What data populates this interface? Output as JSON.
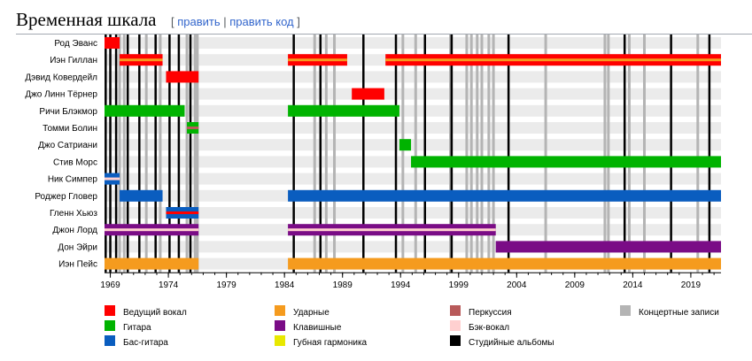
{
  "header": {
    "title": "Временная шкала",
    "bracket_open": "[",
    "edit": "править",
    "sep": "|",
    "edit_code": "править код",
    "bracket_close": "]"
  },
  "chart_data": {
    "type": "timeline",
    "title": "Временная шкала",
    "x_range": [
      1968.5,
      2021.6
    ],
    "x_ticks": [
      1969,
      1974,
      1979,
      1984,
      1989,
      1994,
      1999,
      2004,
      2009,
      2014,
      2019
    ],
    "members": [
      {
        "name": "Род Эванс",
        "bars": [
          {
            "role": "vocals",
            "start": 1968.5,
            "end": 1969.8
          }
        ]
      },
      {
        "name": "Иэн Гиллан",
        "bars": [
          {
            "role": "vocals",
            "start": 1969.8,
            "end": 1973.5,
            "stripe": "drums"
          },
          {
            "role": "vocals",
            "start": 1984.3,
            "end": 1989.4,
            "stripe": "drums"
          },
          {
            "role": "vocals",
            "start": 1992.7,
            "end": 2021.6,
            "stripe": "drums"
          }
        ]
      },
      {
        "name": "Дэвид Ковердейл",
        "bars": [
          {
            "role": "vocals",
            "start": 1973.8,
            "end": 1976.6
          }
        ]
      },
      {
        "name": "Джо Линн Тёрнер",
        "bars": [
          {
            "role": "vocals",
            "start": 1989.8,
            "end": 1992.6
          }
        ]
      },
      {
        "name": "Ричи Блэкмор",
        "bars": [
          {
            "role": "guitar",
            "start": 1968.5,
            "end": 1975.4
          },
          {
            "role": "guitar",
            "start": 1984.3,
            "end": 1993.9
          }
        ]
      },
      {
        "name": "Томми Болин",
        "bars": [
          {
            "role": "guitar",
            "start": 1975.6,
            "end": 1976.6,
            "stripe": "percussion"
          }
        ]
      },
      {
        "name": "Джо Сатриани",
        "bars": [
          {
            "role": "guitar",
            "start": 1993.9,
            "end": 1994.9
          }
        ]
      },
      {
        "name": "Стив Морс",
        "bars": [
          {
            "role": "guitar",
            "start": 1994.9,
            "end": 2021.6
          }
        ]
      },
      {
        "name": "Ник Симпер",
        "bars": [
          {
            "role": "bass",
            "start": 1968.5,
            "end": 1969.8,
            "stripe": "backing"
          }
        ]
      },
      {
        "name": "Роджер Гловер",
        "bars": [
          {
            "role": "bass",
            "start": 1969.8,
            "end": 1973.5
          },
          {
            "role": "bass",
            "start": 1984.3,
            "end": 2021.6
          }
        ]
      },
      {
        "name": "Гленн Хьюз",
        "bars": [
          {
            "role": "bass",
            "start": 1973.8,
            "end": 1976.6,
            "stripe": "vocals"
          }
        ]
      },
      {
        "name": "Джон Лорд",
        "bars": [
          {
            "role": "keyboards",
            "start": 1968.5,
            "end": 1976.6,
            "stripe": "backing"
          },
          {
            "role": "keyboards",
            "start": 1984.3,
            "end": 2002.2,
            "stripe": "backing"
          }
        ]
      },
      {
        "name": "Дон Эйри",
        "bars": [
          {
            "role": "keyboards",
            "start": 2002.2,
            "end": 2021.6
          }
        ]
      },
      {
        "name": "Иэн Пейс",
        "bars": [
          {
            "role": "drums",
            "start": 1968.5,
            "end": 1976.6
          },
          {
            "role": "drums",
            "start": 1984.3,
            "end": 2021.6
          }
        ]
      }
    ],
    "studio_albums": [
      1968.6,
      1969.0,
      1969.5,
      1970.5,
      1971.5,
      1972.9,
      1974.1,
      1974.9,
      1975.9,
      1984.8,
      1987.1,
      1990.8,
      1993.6,
      1996.1,
      1998.4,
      2003.3,
      2013.3,
      2017.3,
      2020.6
    ],
    "live_albums": [
      1969.8,
      1970.2,
      1972.1,
      1973.3,
      1975.6,
      1976.3,
      1976.5,
      1986.6,
      1987.6,
      1988.3,
      1994.2,
      1995.3,
      1998.3,
      1999.7,
      2000.1,
      2000.6,
      2001.0,
      2001.6,
      2002.0,
      2006.5,
      2011.6,
      2011.9,
      2013.7,
      2015.0,
      2019.6
    ],
    "legend": [
      {
        "role": "vocals",
        "label": "Ведущий вокал"
      },
      {
        "role": "guitar",
        "label": "Гитара"
      },
      {
        "role": "bass",
        "label": "Бас-гитара"
      },
      {
        "role": "drums",
        "label": "Ударные"
      },
      {
        "role": "keyboards",
        "label": "Клавишные"
      },
      {
        "role": "harmonica",
        "label": "Губная гармоника"
      },
      {
        "role": "percussion",
        "label": "Перкуссия"
      },
      {
        "role": "backing",
        "label": "Бэк-вокал"
      },
      {
        "role": "studio",
        "label": "Студийные альбомы"
      },
      {
        "role": "live",
        "label": "Концертные записи"
      }
    ],
    "colors": {
      "vocals": "#ff0000",
      "guitar": "#00b300",
      "bass": "#0a5dbf",
      "drums": "#f59b1e",
      "keyboards": "#7a0c86",
      "harmonica": "#e8e800",
      "percussion": "#b85a5a",
      "backing": "#ffd0d0",
      "studio": "#000000",
      "live": "#b4b4b4",
      "row_band": "#ebebeb"
    }
  }
}
